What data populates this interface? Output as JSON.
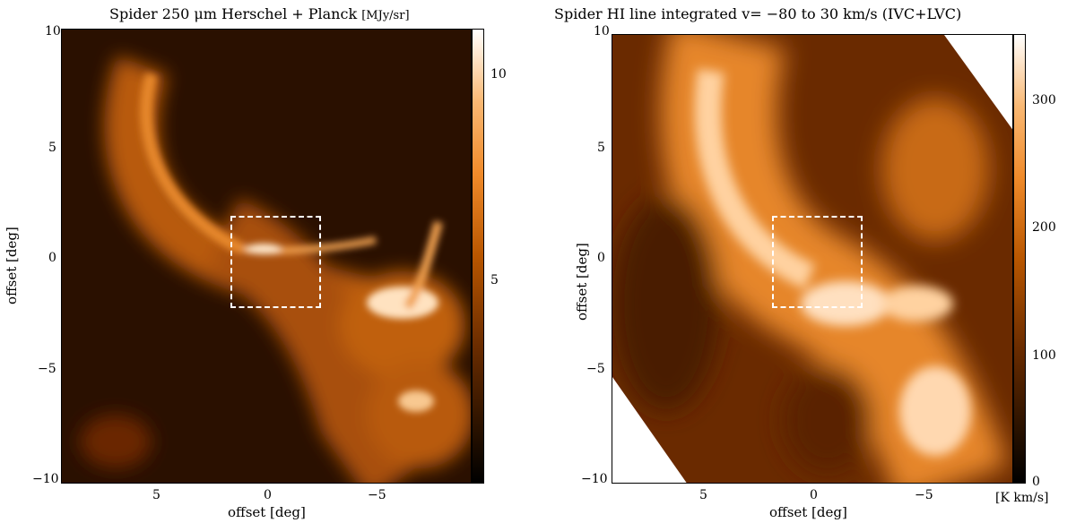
{
  "left_panel": {
    "title": "Spider 250 μm Herschel + Planck",
    "unit": "[MJy/sr]",
    "x_label": "offset [deg]",
    "y_label": "offset [deg]",
    "x_ticks": [
      "5",
      "0",
      "−5"
    ],
    "y_ticks": [
      "10",
      "5",
      "0",
      "−5",
      "−10"
    ],
    "colorbar_ticks": [
      "10",
      "5"
    ],
    "colorbar_range": [
      0,
      11
    ]
  },
  "right_panel": {
    "title": "Spider HI line integrated v= −80 to 30 km/s (IVC+LVC)",
    "unit": "[K km/s]",
    "x_label": "offset [deg]",
    "y_label": "offset [deg]",
    "x_ticks": [
      "5",
      "0",
      "−5"
    ],
    "y_ticks": [
      "10",
      "5",
      "0",
      "−5",
      "−10"
    ],
    "colorbar_ticks": [
      "300",
      "200",
      "100",
      "0"
    ],
    "colorbar_range": [
      0,
      350
    ]
  },
  "colors": {
    "map_dark": "#1a0800",
    "map_mid": "#b85600",
    "map_bright": "#ffd8a8",
    "box_outline": "#ffffff"
  }
}
